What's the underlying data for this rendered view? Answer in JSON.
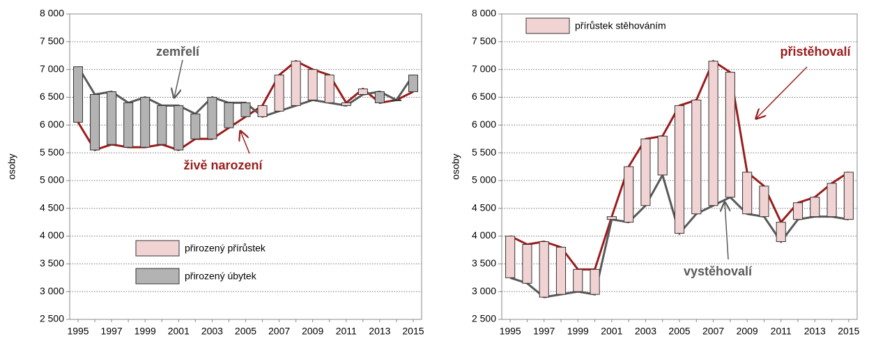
{
  "chart_data": [
    {
      "type": "updown",
      "y_label": "osoby",
      "categories": [
        "1995",
        null,
        "1997",
        null,
        "1999",
        null,
        "2001",
        null,
        "2003",
        null,
        "2005",
        null,
        "2007",
        null,
        "2009",
        null,
        "2011",
        null,
        "2013",
        null,
        "2015"
      ],
      "series": [
        {
          "name": "živě narození",
          "color": "#9b1c1c",
          "values": [
            6050,
            5550,
            5650,
            5600,
            5600,
            5650,
            5550,
            5750,
            5750,
            5950,
            6150,
            6350,
            6900,
            7150,
            7000,
            6900,
            6400,
            6650,
            6400,
            6450,
            6600
          ]
        },
        {
          "name": "zemřelí",
          "color": "#595959",
          "values": [
            7050,
            6550,
            6600,
            6400,
            6500,
            6350,
            6350,
            6200,
            6500,
            6400,
            6400,
            6150,
            6250,
            6350,
            6450,
            6400,
            6350,
            6550,
            6600,
            6450,
            6900
          ]
        }
      ],
      "up_color": "#f2d3d3",
      "down_color": "#b3b3b3",
      "legend": [
        {
          "name": "přirozený přírůstek",
          "color": "#f2d3d3"
        },
        {
          "name": "přirozený úbytek",
          "color": "#b3b3b3"
        }
      ],
      "ylim": [
        2500,
        8000
      ],
      "yticks": [
        {
          "value": 2500,
          "label": "2 500"
        },
        {
          "value": 3000,
          "label": "3 000"
        },
        {
          "value": 3500,
          "label": "3 500"
        },
        {
          "value": 4000,
          "label": "4 000"
        },
        {
          "value": 4500,
          "label": "4 500"
        },
        {
          "value": 5000,
          "label": "5 000"
        },
        {
          "value": 5500,
          "label": "5 500"
        },
        {
          "value": 6000,
          "label": "6 000"
        },
        {
          "value": 6500,
          "label": "6 500"
        },
        {
          "value": 7000,
          "label": "7 000"
        },
        {
          "value": 7500,
          "label": "7 500"
        },
        {
          "value": 8000,
          "label": "8 000"
        }
      ],
      "grid": true
    },
    {
      "type": "updown",
      "y_label": "osoby",
      "categories": [
        "1995",
        null,
        "1997",
        null,
        "1999",
        null,
        "2001",
        null,
        "2003",
        null,
        "2005",
        null,
        "2007",
        null,
        "2009",
        null,
        "2011",
        null,
        "2013",
        null,
        "2015"
      ],
      "series": [
        {
          "name": "přistěhovalí",
          "color": "#9b1c1c",
          "values": [
            4000,
            3850,
            3900,
            3800,
            3400,
            3400,
            4350,
            5250,
            5750,
            5800,
            6350,
            6450,
            7150,
            6950,
            5150,
            4900,
            4250,
            4600,
            4700,
            4950,
            5150
          ]
        },
        {
          "name": "vystěhovalí",
          "color": "#595959",
          "values": [
            3250,
            3150,
            2900,
            2950,
            3000,
            2950,
            4300,
            4250,
            4550,
            5100,
            4050,
            4400,
            4550,
            4700,
            4400,
            4350,
            3900,
            4300,
            4350,
            4350,
            4300
          ]
        }
      ],
      "up_color": "#f2d3d3",
      "down_color": "#b3b3b3",
      "legend": [
        {
          "name": "přírůstek stěhováním",
          "color": "#f2d3d3"
        }
      ],
      "ylim": [
        2500,
        8000
      ],
      "yticks": [
        {
          "value": 2500,
          "label": "2 500"
        },
        {
          "value": 3000,
          "label": "3 000"
        },
        {
          "value": 3500,
          "label": "3 500"
        },
        {
          "value": 4000,
          "label": "4 000"
        },
        {
          "value": 4500,
          "label": "4 500"
        },
        {
          "value": 5000,
          "label": "5 000"
        },
        {
          "value": 5500,
          "label": "5 500"
        },
        {
          "value": 6000,
          "label": "6 000"
        },
        {
          "value": 6500,
          "label": "6 500"
        },
        {
          "value": 7000,
          "label": "7 000"
        },
        {
          "value": 7500,
          "label": "7 500"
        },
        {
          "value": 8000,
          "label": "8 000"
        }
      ],
      "grid": true
    }
  ]
}
